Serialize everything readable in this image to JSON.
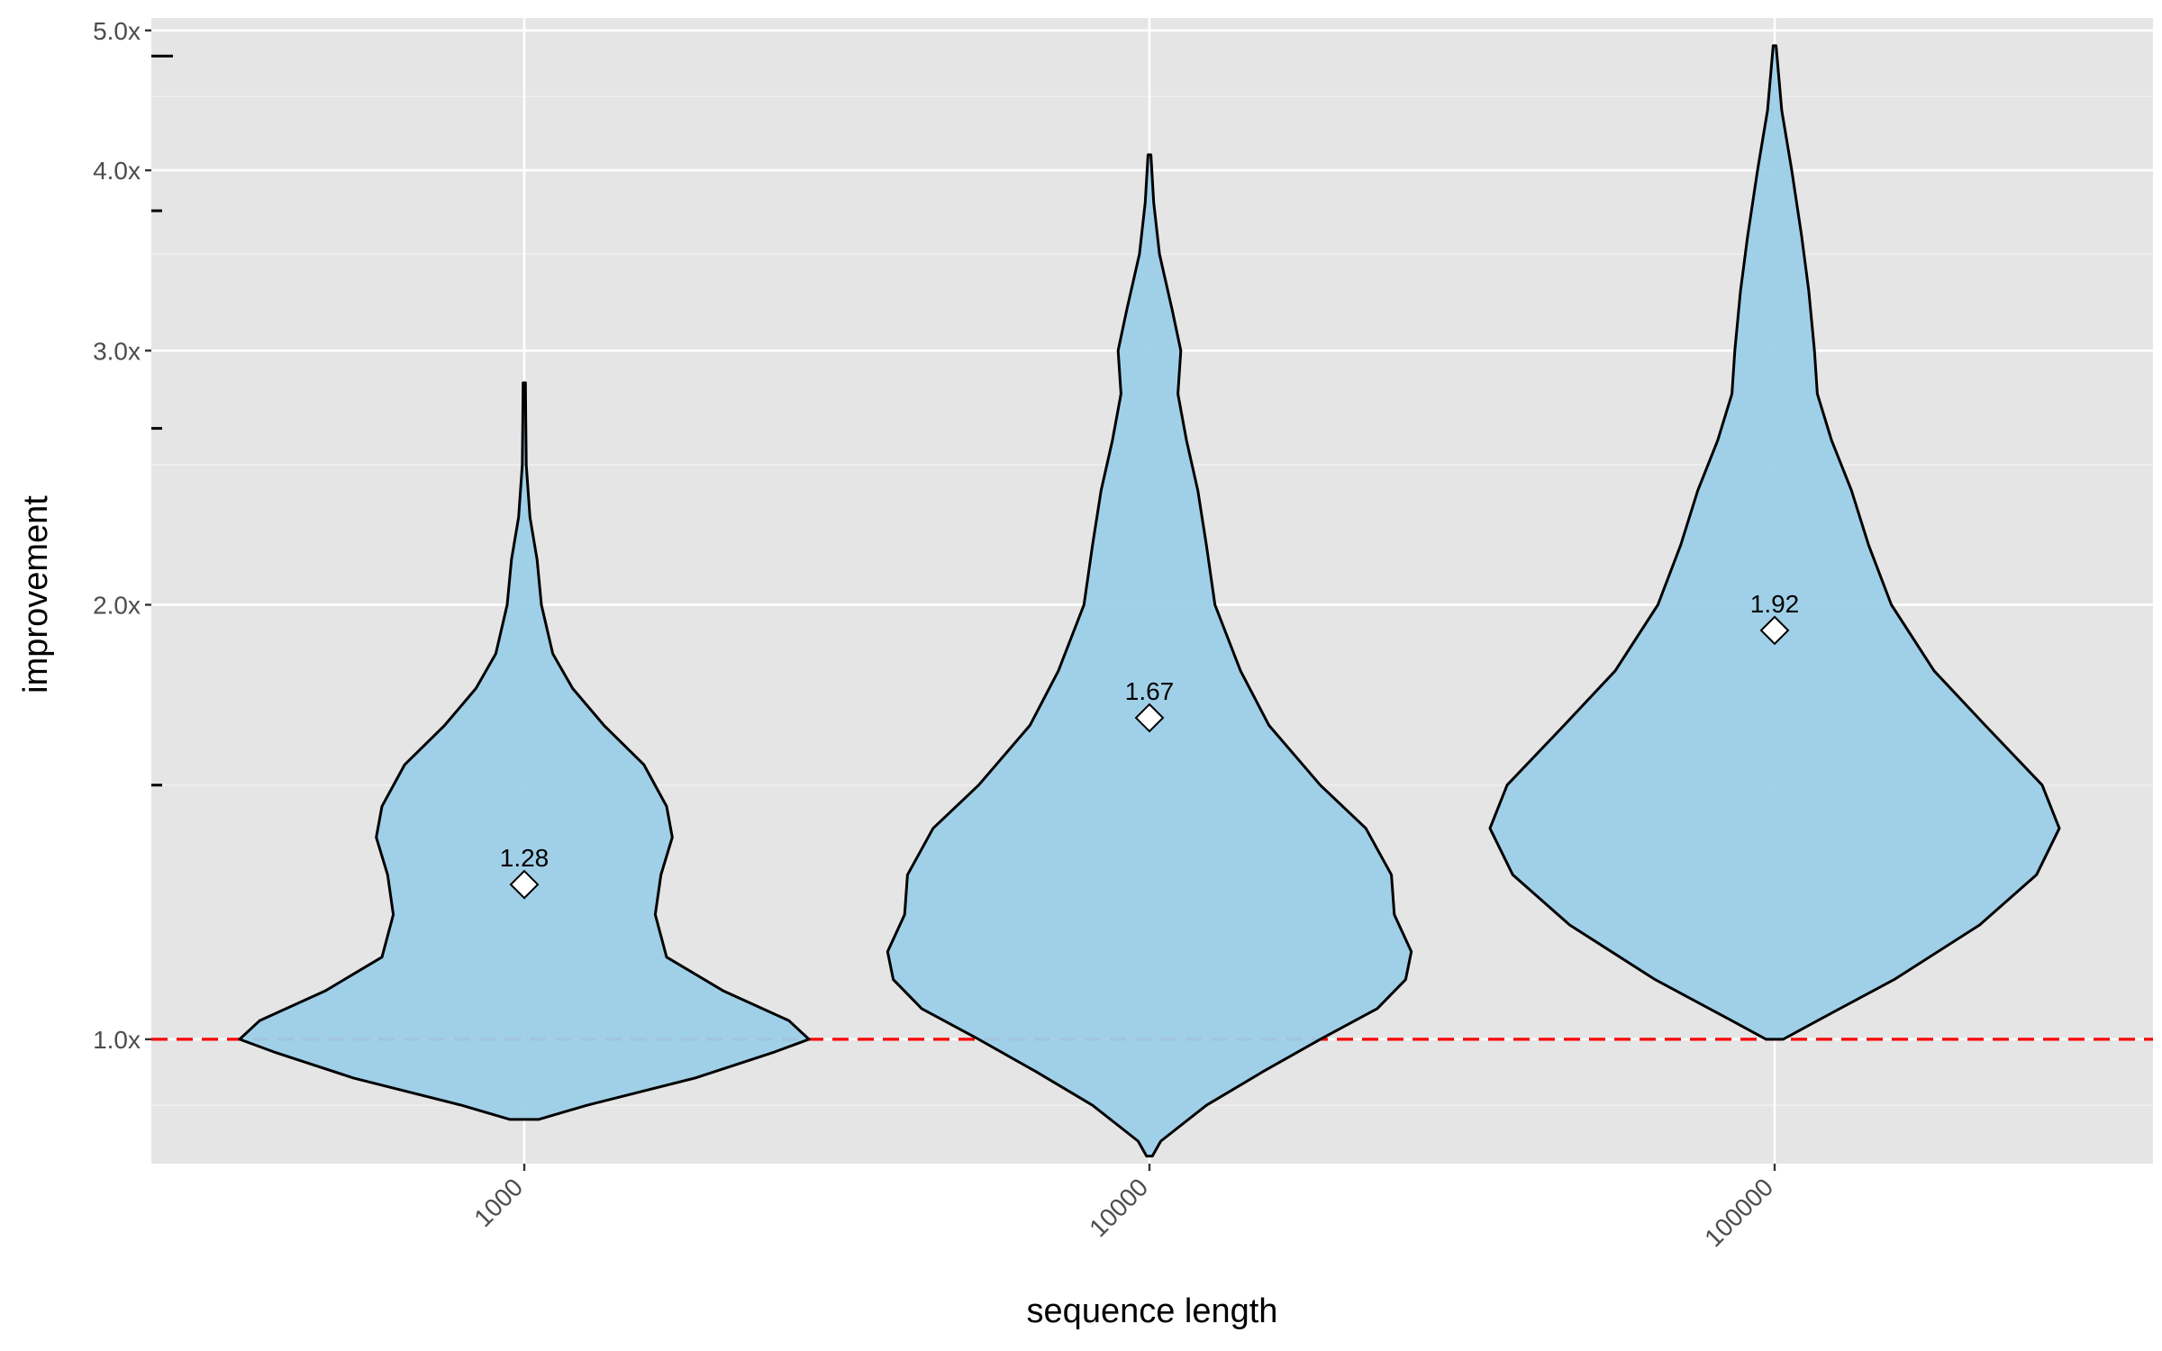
{
  "chart_data": {
    "type": "violin",
    "xlabel": "sequence length",
    "ylabel": "improvement",
    "y_scale": "log",
    "ylim": [
      0.82,
      5.1
    ],
    "y_ticks": [
      {
        "value": 1.0,
        "label": "1.0x"
      },
      {
        "value": 2.0,
        "label": "2.0x"
      },
      {
        "value": 3.0,
        "label": "3.0x"
      },
      {
        "value": 4.0,
        "label": "4.0x"
      },
      {
        "value": 5.0,
        "label": "5.0x"
      }
    ],
    "y_minor_gridlines": [
      0.9,
      1.5,
      2.5,
      3.5,
      4.5
    ],
    "rug_marks": [
      4.8,
      3.75,
      2.65,
      1.5
    ],
    "reference_line": {
      "value": 1.0,
      "color": "#ff0000",
      "style": "dashed"
    },
    "fill_color": "#9ccfe8",
    "categories": [
      "1000",
      "10000",
      "100000"
    ],
    "violins": [
      {
        "category": "1000",
        "mean": 1.28,
        "mean_label": "1.28",
        "density": [
          [
            0.88,
            0.05
          ],
          [
            0.9,
            0.22
          ],
          [
            0.94,
            0.6
          ],
          [
            0.98,
            0.88
          ],
          [
            1.0,
            1.0
          ],
          [
            1.03,
            0.93
          ],
          [
            1.08,
            0.7
          ],
          [
            1.14,
            0.5
          ],
          [
            1.22,
            0.46
          ],
          [
            1.3,
            0.48
          ],
          [
            1.38,
            0.52
          ],
          [
            1.45,
            0.5
          ],
          [
            1.55,
            0.42
          ],
          [
            1.65,
            0.28
          ],
          [
            1.75,
            0.17
          ],
          [
            1.85,
            0.1
          ],
          [
            2.0,
            0.06
          ],
          [
            2.15,
            0.045
          ],
          [
            2.3,
            0.02
          ],
          [
            2.5,
            0.007
          ],
          [
            2.7,
            0.005
          ],
          [
            2.85,
            0.004
          ]
        ]
      },
      {
        "category": "10000",
        "mean": 1.67,
        "mean_label": "1.67",
        "density": [
          [
            0.83,
            0.01
          ],
          [
            0.85,
            0.04
          ],
          [
            0.9,
            0.2
          ],
          [
            0.95,
            0.4
          ],
          [
            1.0,
            0.6
          ],
          [
            1.05,
            0.8
          ],
          [
            1.1,
            0.9
          ],
          [
            1.15,
            0.92
          ],
          [
            1.22,
            0.86
          ],
          [
            1.3,
            0.85
          ],
          [
            1.4,
            0.76
          ],
          [
            1.5,
            0.6
          ],
          [
            1.65,
            0.42
          ],
          [
            1.8,
            0.32
          ],
          [
            2.0,
            0.23
          ],
          [
            2.2,
            0.2
          ],
          [
            2.4,
            0.17
          ],
          [
            2.6,
            0.13
          ],
          [
            2.8,
            0.1
          ],
          [
            3.0,
            0.11
          ],
          [
            3.2,
            0.08
          ],
          [
            3.5,
            0.035
          ],
          [
            3.8,
            0.015
          ],
          [
            4.1,
            0.005
          ]
        ]
      },
      {
        "category": "100000",
        "mean": 1.92,
        "mean_label": "1.92",
        "density": [
          [
            1.0,
            0.03
          ],
          [
            1.03,
            0.15
          ],
          [
            1.1,
            0.42
          ],
          [
            1.2,
            0.72
          ],
          [
            1.3,
            0.92
          ],
          [
            1.4,
            1.0
          ],
          [
            1.5,
            0.94
          ],
          [
            1.65,
            0.74
          ],
          [
            1.8,
            0.56
          ],
          [
            2.0,
            0.41
          ],
          [
            2.2,
            0.33
          ],
          [
            2.4,
            0.27
          ],
          [
            2.6,
            0.2
          ],
          [
            2.8,
            0.15
          ],
          [
            3.0,
            0.14
          ],
          [
            3.3,
            0.12
          ],
          [
            3.6,
            0.095
          ],
          [
            4.0,
            0.06
          ],
          [
            4.4,
            0.025
          ],
          [
            4.88,
            0.005
          ]
        ]
      }
    ]
  }
}
